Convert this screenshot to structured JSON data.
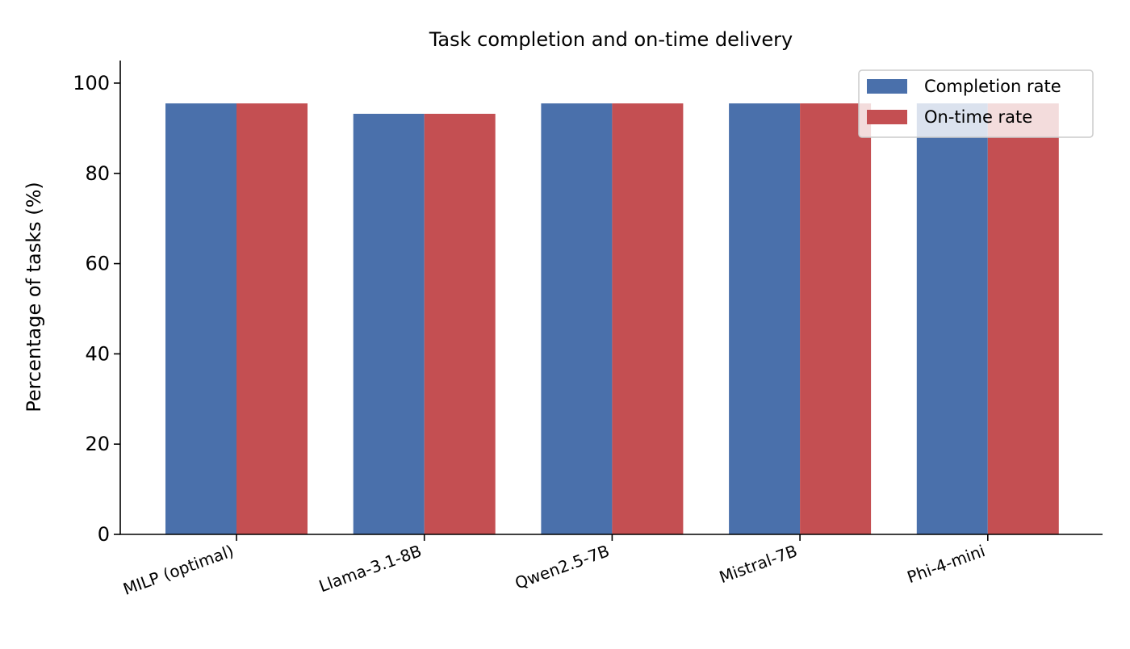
{
  "chart_data": {
    "type": "bar",
    "title": "Task completion and on-time delivery",
    "xlabel": "",
    "ylabel": "Percentage of tasks (%)",
    "categories": [
      "MILP (optimal)",
      "Llama-3.1-8B",
      "Qwen2.5-7B",
      "Mistral-7B",
      "Phi-4-mini"
    ],
    "series": [
      {
        "name": "Completion rate",
        "color": "#4a70ab",
        "values": [
          95.5,
          93.2,
          95.5,
          95.5,
          95.5
        ]
      },
      {
        "name": "On-time rate",
        "color": "#c44f52",
        "values": [
          95.5,
          93.2,
          95.5,
          95.5,
          95.5
        ]
      }
    ],
    "ylim": [
      0,
      105
    ],
    "yticks": [
      0,
      20,
      40,
      60,
      80,
      100
    ],
    "grid": false,
    "legend_position": "top-right",
    "x_tick_rotation": "rotated"
  }
}
